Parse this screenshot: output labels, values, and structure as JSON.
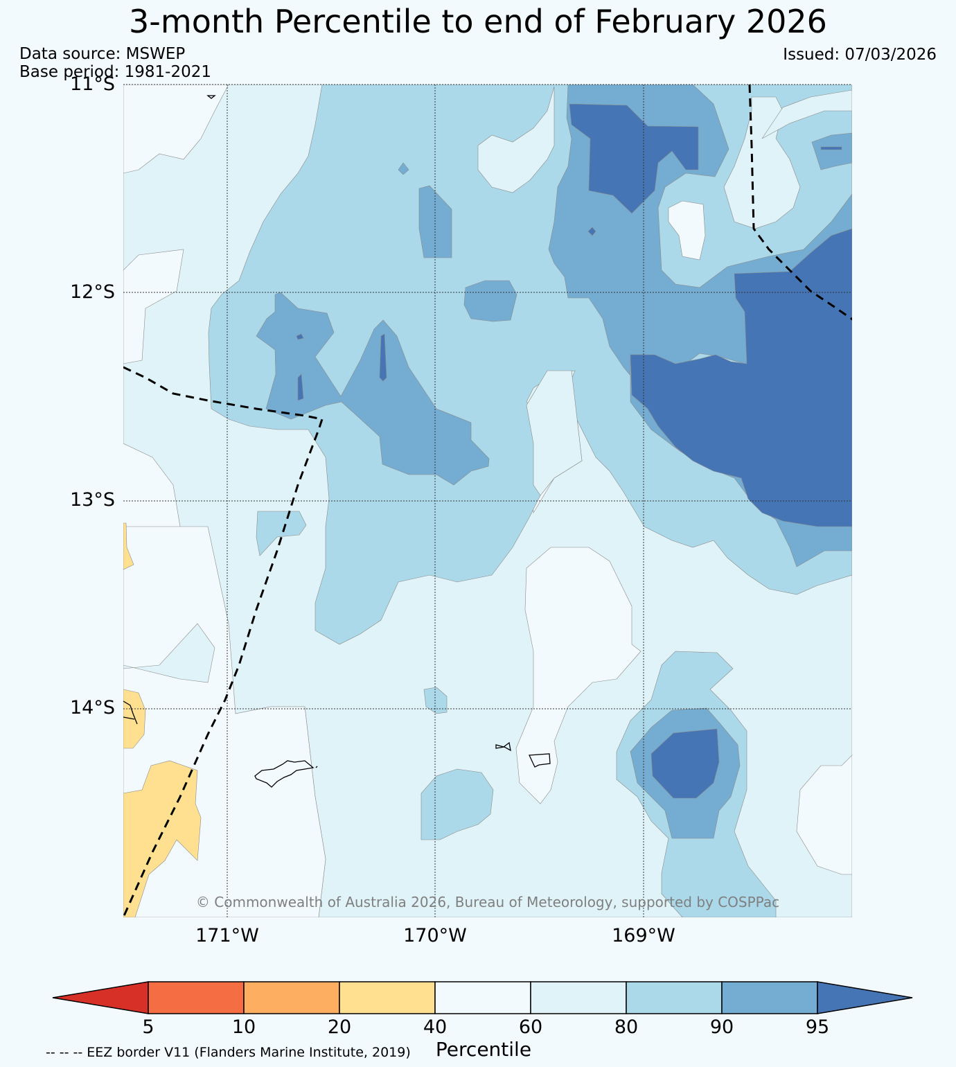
{
  "title": "3-month Percentile to end of February 2026",
  "data_source": "Data source: MSWEP",
  "base_period": "Base period: 1981-2021",
  "issued": "Issued: 07/03/2026",
  "latitude_labels": [
    "11°S",
    "12°S",
    "13°S",
    "14°S"
  ],
  "longitude_labels": [
    "171°W",
    "170°W",
    "169°W"
  ],
  "copyright": "© Commonwealth of Australia 2026, Bureau of Meteorology, supported by COSPPac",
  "colorbar": {
    "title": "Percentile",
    "ticks": [
      "5",
      "10",
      "20",
      "40",
      "60",
      "80",
      "90",
      "95"
    ],
    "colors": [
      "#d73027",
      "#f46d43",
      "#fdae61",
      "#fee090",
      "#f3fafd",
      "#e0f3f8",
      "#abd9e9",
      "#74add1",
      "#4575b4"
    ]
  },
  "legend_note": "-- -- -- EEZ border V11 (Flanders Marine Institute, 2019)"
}
